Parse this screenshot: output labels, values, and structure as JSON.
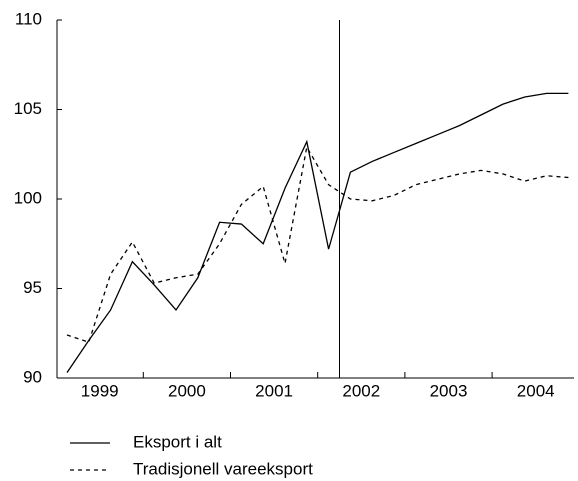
{
  "chart_data": {
    "type": "line",
    "categories": [
      null,
      "1999",
      null,
      null,
      null,
      "2000",
      null,
      null,
      null,
      "2001",
      null,
      null,
      null,
      "2002",
      null,
      null,
      null,
      "2003",
      null,
      null,
      null,
      "2004",
      null,
      null
    ],
    "series": [
      {
        "name": "Eksport i alt",
        "color": "#000000",
        "dash": "solid",
        "values": [
          90.3,
          92.1,
          93.8,
          96.5,
          95.2,
          93.8,
          95.6,
          98.7,
          98.6,
          97.5,
          100.6,
          103.2,
          97.2,
          101.5,
          102.1,
          102.6,
          103.1,
          103.6,
          104.1,
          104.7,
          105.3,
          105.7,
          105.9,
          105.9
        ]
      },
      {
        "name": "Tradisjonell vareeksport",
        "color": "#000000",
        "dash": "dashed",
        "values": [
          92.4,
          92.0,
          95.8,
          97.6,
          95.3,
          95.6,
          95.8,
          97.5,
          99.7,
          100.7,
          96.4,
          102.9,
          100.8,
          100.0,
          99.9,
          100.2,
          100.8,
          101.1,
          101.4,
          101.6,
          101.4,
          101.0,
          101.3,
          101.2
        ]
      }
    ],
    "ylim": [
      90,
      110
    ],
    "yticks": [
      90,
      95,
      100,
      105,
      110
    ],
    "grid": false,
    "legend": "bottom"
  }
}
